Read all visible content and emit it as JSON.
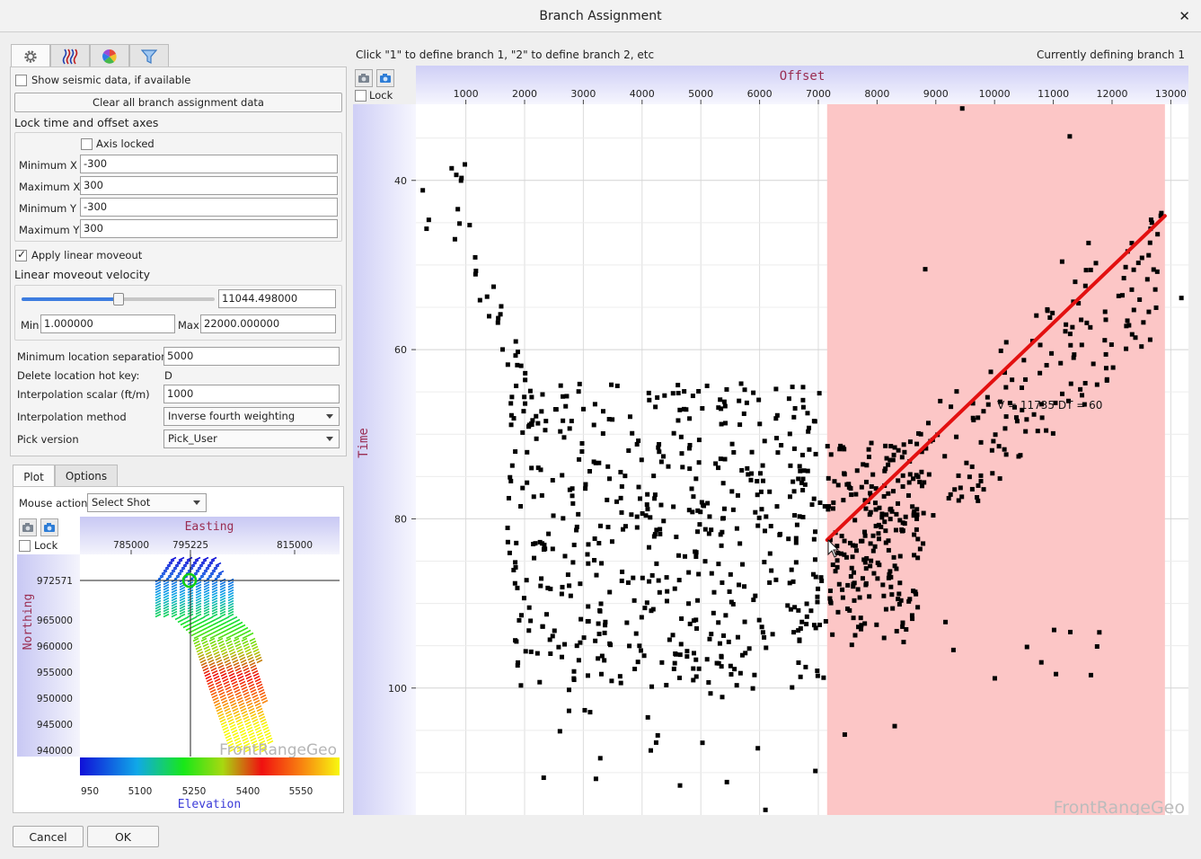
{
  "window": {
    "title": "Branch Assignment",
    "close_glyph": "✕"
  },
  "left_tabs": [
    {
      "icon": "gear-icon"
    },
    {
      "icon": "wiggle-traces-icon"
    },
    {
      "icon": "color-wheel-icon"
    },
    {
      "icon": "filter-icon"
    }
  ],
  "settings": {
    "show_seismic_label": "Show seismic data, if available",
    "show_seismic_checked": false,
    "clear_button": "Clear all branch assignment data",
    "lock_axes_header": "Lock time and offset axes",
    "axis_locked_label": "Axis locked",
    "axis_locked_checked": false,
    "min_x_label": "Minimum X",
    "min_x": "-300",
    "max_x_label": "Maximum X",
    "max_x": "300",
    "min_y_label": "Minimum Y",
    "min_y": "-300",
    "max_y_label": "Maximum Y",
    "max_y": "300",
    "apply_lmo_label": "Apply linear moveout",
    "apply_lmo_checked": true,
    "lmo_velocity_header": "Linear moveout velocity",
    "velocity_value": "11044.498000",
    "velocity_fraction": 0.502,
    "min_label": "Min",
    "min_value": "1.000000",
    "max_label": "Max",
    "max_value": "22000.000000",
    "min_sep_label": "Minimum location separation",
    "min_sep": "5000",
    "hotkey_label": "Delete location hot key:",
    "hotkey": "D",
    "interp_scalar_label": "Interpolation scalar (ft/m)",
    "interp_scalar": "1000",
    "interp_method_label": "Interpolation method",
    "interp_method": "Inverse fourth weighting",
    "pick_version_label": "Pick version",
    "pick_version": "Pick_User"
  },
  "bottom_tabs": [
    {
      "label": "Plot"
    },
    {
      "label": "Options"
    }
  ],
  "map": {
    "mouse_action_label": "Mouse action",
    "mouse_action": "Select Shot",
    "lock_label": "Lock",
    "x_title": "Easting",
    "y_title": "Northing",
    "x_ticks": [
      "785000",
      "795225",
      "815000"
    ],
    "y_ticks": [
      "972571",
      "965000",
      "960000",
      "955000",
      "950000",
      "945000",
      "940000"
    ],
    "colorbar_ticks": [
      "950",
      "5100",
      "5250",
      "5400",
      "5550"
    ],
    "colorbar_title": "Elevation",
    "watermark": "FrontRangeGeo"
  },
  "instruction": "Click \"1\" to define branch 1, \"2\" to define branch 2, etc",
  "status": "Currently defining branch 1",
  "main_plot": {
    "lock_label": "Lock",
    "watermark": "FrontRangeGeo",
    "line_annotation": "V = 11735  DT = 60"
  },
  "chart_data": {
    "type": "scatter",
    "xlabel": "Offset",
    "ylabel": "Time",
    "xlim": [
      150,
      13300
    ],
    "ylim": [
      31,
      115
    ],
    "x_ticks": [
      1000,
      2000,
      3000,
      4000,
      5000,
      6000,
      7000,
      8000,
      9000,
      10000,
      11000,
      12000,
      13000
    ],
    "y_ticks": [
      40,
      60,
      80,
      100
    ],
    "selected_range": [
      7150,
      12900
    ],
    "highlight_color": "#fcc6c6",
    "branch_line": {
      "x": [
        7150,
        12900
      ],
      "y": [
        82.5,
        44.2
      ],
      "color": "#e31010"
    },
    "clusters": [
      {
        "x": [
          150,
          1200
        ],
        "y": [
          36,
          47
        ],
        "n": 12
      },
      {
        "x": [
          1150,
          2200
        ],
        "y": [
          50,
          68
        ],
        "n": 25
      },
      {
        "x": [
          1700,
          7150
        ],
        "y": [
          64,
          100
        ],
        "n": 520
      },
      {
        "x": [
          2000,
          6200
        ],
        "y": [
          96,
          112
        ],
        "n": 25
      },
      {
        "x": [
          7150,
          8700
        ],
        "y": [
          71,
          95
        ],
        "n": 150
      },
      {
        "x": [
          7150,
          12900
        ],
        "y": [
          48,
          90
        ],
        "n": 230
      },
      {
        "x": [
          8200,
          11800
        ],
        "y": [
          90,
          100
        ],
        "n": 10
      }
    ],
    "points": [
      {
        "x": 9450,
        "y": 31.5
      },
      {
        "x": 11280,
        "y": 34.8
      },
      {
        "x": 11600,
        "y": 47.4
      },
      {
        "x": 11150,
        "y": 49.6
      },
      {
        "x": 13180,
        "y": 53.9
      },
      {
        "x": 8820,
        "y": 50.5
      },
      {
        "x": 9300,
        "y": 95.5
      },
      {
        "x": 8300,
        "y": 104.5
      },
      {
        "x": 7450,
        "y": 105.5
      },
      {
        "x": 6100,
        "y": 114.4
      },
      {
        "x": 6950,
        "y": 109.8
      },
      {
        "x": 8800,
        "y": 75.7
      }
    ],
    "grid": true,
    "marker_color": "#000000"
  }
}
